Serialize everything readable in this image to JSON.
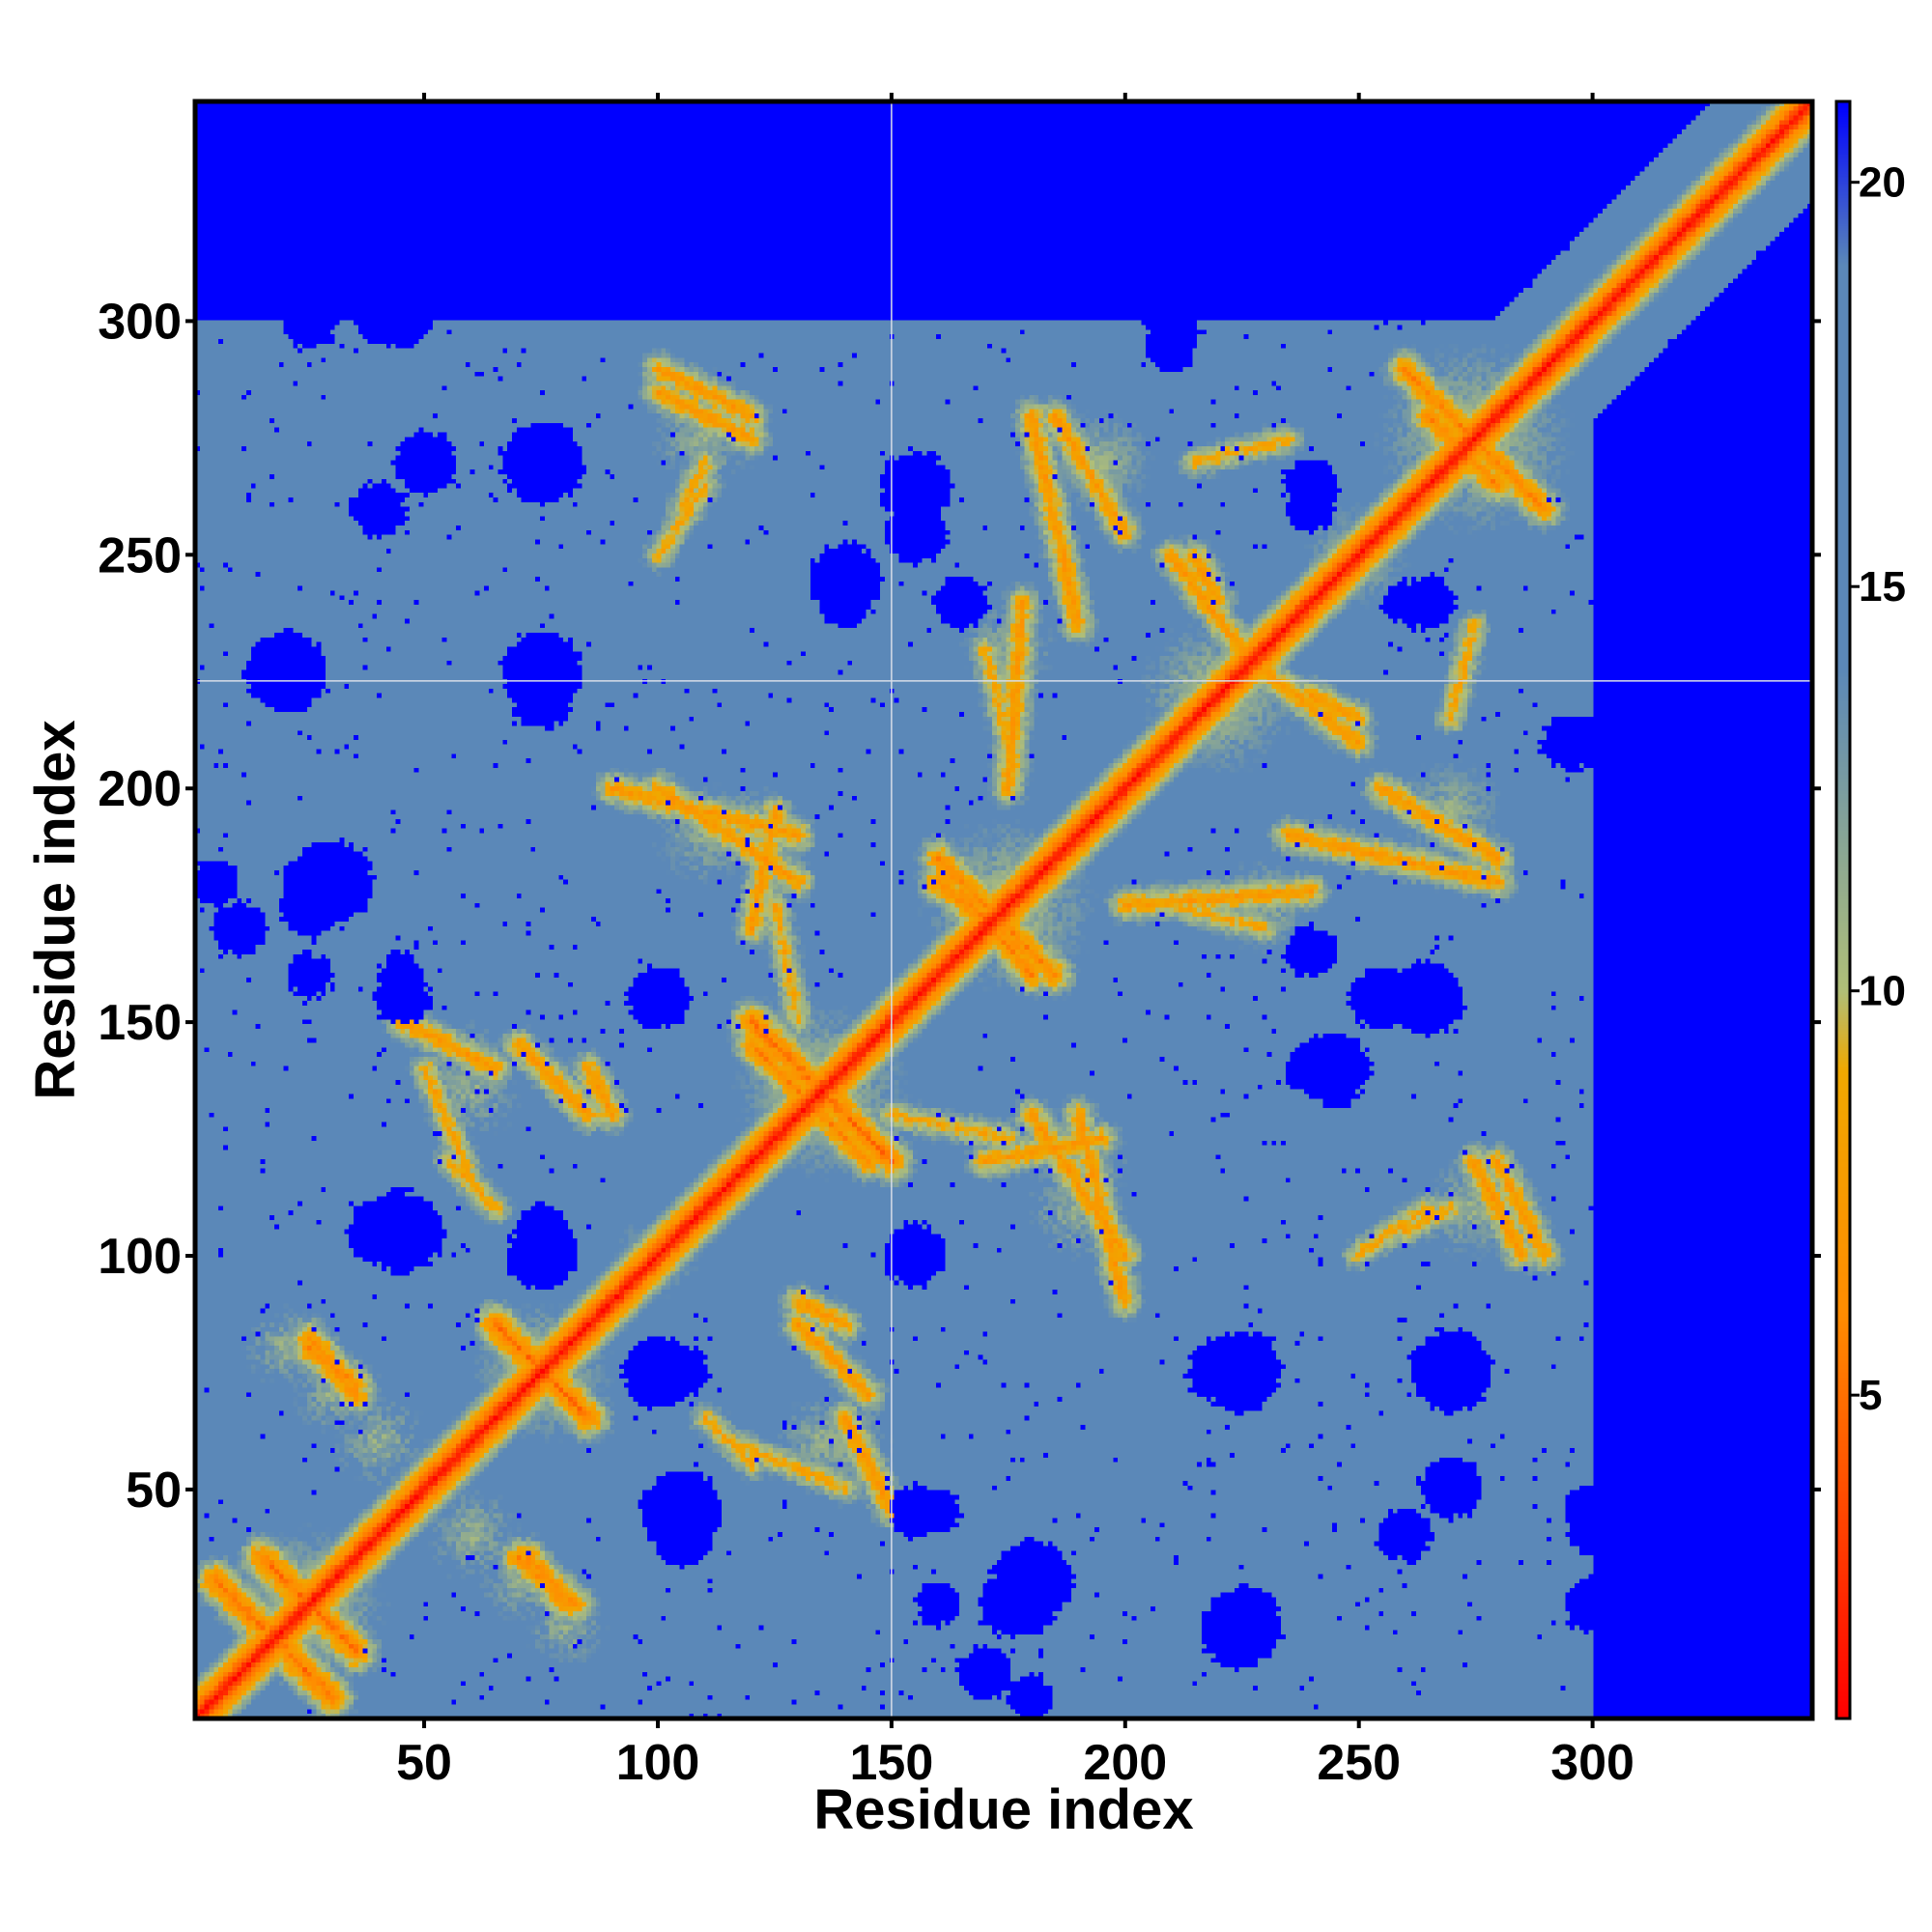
{
  "chart_data": {
    "type": "heatmap",
    "title": "",
    "xlabel": "Residue index",
    "ylabel": "Residue index",
    "xlim": [
      1,
      347
    ],
    "ylim": [
      1,
      347
    ],
    "xticks": [
      50,
      100,
      150,
      200,
      250,
      300
    ],
    "yticks": [
      50,
      100,
      150,
      200,
      250,
      300
    ],
    "x_minor_ticks": [
      50,
      100,
      150,
      200,
      250,
      300
    ],
    "y_minor_ticks": [
      50,
      100,
      150,
      200,
      250,
      300
    ],
    "colorbar": {
      "range": [
        1,
        21
      ],
      "ticks": [
        5,
        10,
        15,
        20
      ],
      "colors": [
        {
          "value": 1,
          "color": "#ff0000"
        },
        {
          "value": 6,
          "color": "#ff8c00"
        },
        {
          "value": 9,
          "color": "#f0a800"
        },
        {
          "value": 10,
          "color": "#b0bf78"
        },
        {
          "value": 14,
          "color": "#5b88b8"
        },
        {
          "value": 19,
          "color": "#5b88b8"
        },
        {
          "value": 21,
          "color": "#0000ff"
        }
      ]
    },
    "gaps": {
      "x": [
        150
      ],
      "y": [
        223
      ]
    },
    "background_value": 21,
    "diagonal": {
      "value": 1,
      "halfwidth": 3.5
    },
    "hull": {
      "max_residue": 300,
      "cutoff_value": 19
    },
    "contact_segments": [
      {
        "from": [
          5,
          30
        ],
        "to": [
          30,
          5
        ],
        "value": 4
      },
      {
        "from": [
          15,
          35
        ],
        "to": [
          35,
          15
        ],
        "value": 4
      },
      {
        "from": [
          25,
          80
        ],
        "to": [
          35,
          72
        ],
        "value": 5
      },
      {
        "from": [
          65,
          85
        ],
        "to": [
          85,
          65
        ],
        "value": 4
      },
      {
        "from": [
          70,
          35
        ],
        "to": [
          82,
          25
        ],
        "value": 5
      },
      {
        "from": [
          120,
          150
        ],
        "to": [
          150,
          120
        ],
        "value": 4
      },
      {
        "from": [
          125,
          140
        ],
        "to": [
          145,
          120
        ],
        "value": 5
      },
      {
        "from": [
          160,
          185
        ],
        "to": [
          185,
          160
        ],
        "value": 5
      },
      {
        "from": [
          165,
          178
        ],
        "to": [
          180,
          160
        ],
        "value": 5
      },
      {
        "from": [
          100,
          200
        ],
        "to": [
          130,
          180
        ],
        "value": 6
      },
      {
        "from": [
          125,
          195
        ],
        "to": [
          120,
          170
        ],
        "value": 6
      },
      {
        "from": [
          185,
          280
        ],
        "to": [
          200,
          255
        ],
        "value": 6
      },
      {
        "from": [
          210,
          250
        ],
        "to": [
          225,
          230
        ],
        "value": 6
      },
      {
        "from": [
          260,
          290
        ],
        "to": [
          290,
          260
        ],
        "value": 5
      },
      {
        "from": [
          265,
          280
        ],
        "to": [
          280,
          265
        ],
        "value": 5
      },
      {
        "from": [
          235,
          190
        ],
        "to": [
          280,
          180
        ],
        "value": 6
      },
      {
        "from": [
          190,
          130
        ],
        "to": [
          200,
          90
        ],
        "value": 6
      },
      {
        "from": [
          150,
          130
        ],
        "to": [
          175,
          125
        ],
        "value": 7
      },
      {
        "from": [
          100,
          290
        ],
        "to": [
          120,
          280
        ],
        "value": 6
      },
      {
        "from": [
          105,
          260
        ],
        "to": [
          110,
          270
        ],
        "value": 7
      },
      {
        "from": [
          275,
          120
        ],
        "to": [
          285,
          100
        ],
        "value": 6
      },
      {
        "from": [
          250,
          100
        ],
        "to": [
          265,
          110
        ],
        "value": 7
      },
      {
        "from": [
          45,
          150
        ],
        "to": [
          65,
          140
        ],
        "value": 6
      },
      {
        "from": [
          55,
          120
        ],
        "to": [
          65,
          110
        ],
        "value": 7
      },
      {
        "from": [
          85,
          140
        ],
        "to": [
          90,
          130
        ],
        "value": 6
      },
      {
        "from": [
          130,
          85
        ],
        "to": [
          145,
          70
        ],
        "value": 6
      },
      {
        "from": [
          115,
          60
        ],
        "to": [
          140,
          50
        ],
        "value": 7
      },
      {
        "from": [
          200,
          175
        ],
        "to": [
          240,
          178
        ],
        "value": 6
      },
      {
        "from": [
          215,
          270
        ],
        "to": [
          235,
          275
        ],
        "value": 7
      },
      {
        "from": [
          240,
          220
        ],
        "to": [
          250,
          215
        ],
        "value": 6
      },
      {
        "from": [
          170,
          230
        ],
        "to": [
          175,
          210
        ],
        "value": 7
      }
    ],
    "contact_blobs": [
      {
        "center": [
          25,
          25
        ],
        "radius": 18,
        "value": 9
      },
      {
        "center": [
          75,
          75
        ],
        "radius": 16,
        "value": 9
      },
      {
        "center": [
          60,
          40
        ],
        "radius": 14,
        "value": 10
      },
      {
        "center": [
          80,
          20
        ],
        "radius": 12,
        "value": 10
      },
      {
        "center": [
          30,
          70
        ],
        "radius": 12,
        "value": 10
      },
      {
        "center": [
          135,
          135
        ],
        "radius": 20,
        "value": 9
      },
      {
        "center": [
          120,
          190
        ],
        "radius": 15,
        "value": 10
      },
      {
        "center": [
          175,
          175
        ],
        "radius": 20,
        "value": 9
      },
      {
        "center": [
          195,
          270
        ],
        "radius": 15,
        "value": 10
      },
      {
        "center": [
          275,
          275
        ],
        "radius": 22,
        "value": 9
      },
      {
        "center": [
          270,
          195
        ],
        "radius": 15,
        "value": 10
      },
      {
        "center": [
          220,
          220
        ],
        "radius": 18,
        "value": 9
      },
      {
        "center": [
          110,
          280
        ],
        "radius": 14,
        "value": 10
      },
      {
        "center": [
          275,
          110
        ],
        "radius": 16,
        "value": 10
      },
      {
        "center": [
          135,
          60
        ],
        "radius": 14,
        "value": 10
      },
      {
        "center": [
          60,
          140
        ],
        "radius": 14,
        "value": 10
      },
      {
        "center": [
          190,
          110
        ],
        "radius": 15,
        "value": 10
      },
      {
        "center": [
          230,
          175
        ],
        "radius": 14,
        "value": 10
      },
      {
        "center": [
          250,
          250
        ],
        "radius": 15,
        "value": 10
      },
      {
        "center": [
          100,
          100
        ],
        "radius": 12,
        "value": 10
      }
    ],
    "far_blobs": [
      {
        "center": [
          5,
          180
        ],
        "radius": 4
      },
      {
        "center": [
          25,
          180
        ],
        "radius": 5
      },
      {
        "center": [
          25,
          160
        ],
        "radius": 4
      },
      {
        "center": [
          45,
          160
        ],
        "radius": 4
      },
      {
        "center": [
          40,
          105
        ],
        "radius": 6
      },
      {
        "center": [
          75,
          105
        ],
        "radius": 5
      },
      {
        "center": [
          100,
          155
        ],
        "radius": 6
      },
      {
        "center": [
          100,
          75
        ],
        "radius": 7
      },
      {
        "center": [
          105,
          45
        ],
        "radius": 8
      },
      {
        "center": [
          155,
          100
        ],
        "radius": 5
      },
      {
        "center": [
          155,
          45
        ],
        "radius": 5
      },
      {
        "center": [
          175,
          25
        ],
        "radius": 6
      },
      {
        "center": [
          170,
          10
        ],
        "radius": 5
      },
      {
        "center": [
          225,
          75
        ],
        "radius": 8
      },
      {
        "center": [
          270,
          75
        ],
        "radius": 8
      },
      {
        "center": [
          255,
          155
        ],
        "radius": 6
      },
      {
        "center": [
          245,
          140
        ],
        "radius": 7
      },
      {
        "center": [
          270,
          50
        ],
        "radius": 6
      },
      {
        "center": [
          300,
          45
        ],
        "radius": 5
      },
      {
        "center": [
          300,
          25
        ],
        "radius": 5
      },
      {
        "center": [
          155,
          265
        ],
        "radius": 7
      },
      {
        "center": [
          165,
          240
        ],
        "radius": 5
      },
      {
        "center": [
          210,
          295
        ],
        "radius": 5
      },
      {
        "center": [
          240,
          265
        ],
        "radius": 5
      },
      {
        "center": [
          260,
          240
        ],
        "radius": 4
      },
      {
        "center": [
          300,
          210
        ],
        "radius": 5
      },
      {
        "center": [
          75,
          270
        ],
        "radius": 6
      },
      {
        "center": [
          75,
          220
        ],
        "radius": 6
      },
      {
        "center": [
          40,
          260
        ],
        "radius": 5
      },
      {
        "center": [
          40,
          300
        ],
        "radius": 4
      },
      {
        "center": [
          180,
          30
        ],
        "radius": 8
      },
      {
        "center": [
          225,
          20
        ],
        "radius": 8
      },
      {
        "center": [
          140,
          240
        ],
        "radius": 5
      }
    ]
  }
}
